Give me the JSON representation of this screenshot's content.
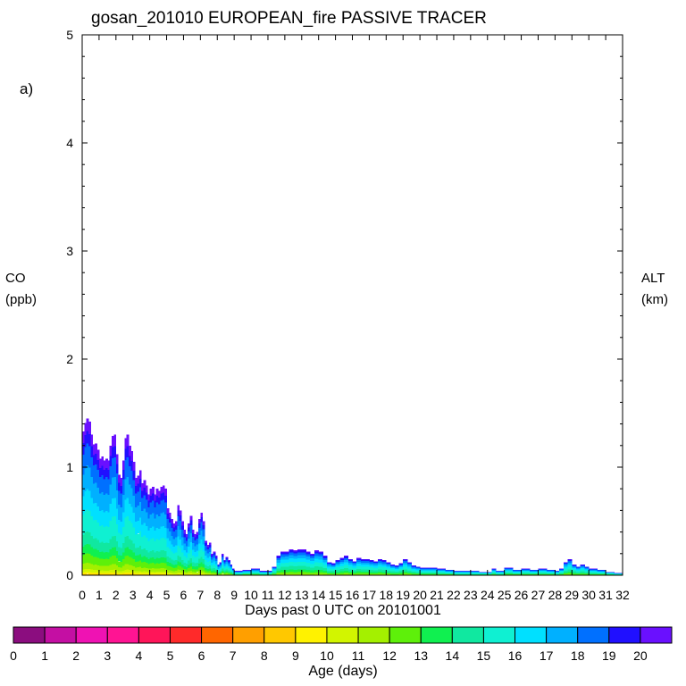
{
  "chart_data": {
    "type": "area",
    "title": "gosan_201010 EUROPEAN_fire PASSIVE TRACER",
    "panel_label": "a)",
    "ylabel": [
      "CO",
      "(ppb)"
    ],
    "ylabel_right": [
      "ALT",
      "(km)"
    ],
    "xlabel": "Days past 0 UTC on 20101001",
    "xlim": [
      0,
      32
    ],
    "ylim": [
      0,
      5
    ],
    "xticks": [
      0,
      1,
      2,
      3,
      4,
      5,
      6,
      7,
      8,
      9,
      10,
      11,
      12,
      13,
      14,
      15,
      16,
      17,
      18,
      19,
      20,
      21,
      22,
      23,
      24,
      25,
      26,
      27,
      28,
      29,
      30,
      31,
      32
    ],
    "yticks": [
      0,
      1,
      2,
      3,
      4,
      5
    ],
    "total_co": {
      "x": [
        0,
        0.125,
        0.25,
        0.375,
        0.5,
        0.625,
        0.75,
        0.875,
        1,
        1.125,
        1.25,
        1.375,
        1.5,
        1.625,
        1.75,
        1.875,
        2,
        2.125,
        2.25,
        2.375,
        2.5,
        2.625,
        2.75,
        2.875,
        3,
        3.125,
        3.25,
        3.375,
        3.5,
        3.625,
        3.75,
        3.875,
        4,
        4.125,
        4.25,
        4.375,
        4.5,
        4.625,
        4.75,
        4.875,
        5,
        5.125,
        5.25,
        5.375,
        5.5,
        5.625,
        5.75,
        5.875,
        6,
        6.125,
        6.25,
        6.375,
        6.5,
        6.625,
        6.75,
        6.875,
        7,
        7.125,
        7.25,
        7.375,
        7.5,
        7.625,
        7.75,
        7.875,
        8,
        8.125,
        8.25,
        8.375,
        8.5,
        8.625,
        8.75,
        8.875,
        9,
        9.5,
        10,
        10.5,
        11,
        11.25,
        11.5,
        11.75,
        12,
        12.25,
        12.5,
        12.75,
        13,
        13.25,
        13.5,
        13.75,
        14,
        14.25,
        14.5,
        14.75,
        15,
        15.25,
        15.5,
        15.75,
        16,
        16.25,
        16.5,
        16.75,
        17,
        17.25,
        17.5,
        17.75,
        18,
        18.25,
        18.5,
        18.75,
        19,
        19.25,
        19.5,
        19.75,
        20,
        20.5,
        21,
        21.5,
        22,
        22.5,
        23,
        23.5,
        24,
        24.25,
        24.5,
        25,
        25.5,
        26,
        26.5,
        27,
        27.5,
        28,
        28.25,
        28.5,
        28.75,
        29,
        29.25,
        29.5,
        29.75,
        30,
        30.5,
        31,
        31.5
      ],
      "values": [
        1.33,
        1.41,
        1.45,
        1.42,
        1.3,
        1.21,
        1.22,
        1.16,
        1.08,
        1.1,
        1.06,
        1.08,
        1.06,
        1.2,
        1.29,
        1.3,
        1.12,
        0.93,
        0.9,
        1.06,
        1.27,
        1.3,
        1.2,
        1.15,
        1.05,
        0.9,
        0.92,
        0.97,
        0.85,
        0.88,
        0.83,
        0.75,
        0.8,
        0.82,
        0.75,
        0.8,
        0.78,
        0.82,
        0.83,
        0.8,
        0.62,
        0.58,
        0.52,
        0.48,
        0.5,
        0.65,
        0.6,
        0.5,
        0.42,
        0.38,
        0.48,
        0.55,
        0.42,
        0.38,
        0.4,
        0.52,
        0.58,
        0.5,
        0.32,
        0.28,
        0.3,
        0.2,
        0.22,
        0.18,
        0.1,
        0.12,
        0.2,
        0.14,
        0.17,
        0.14,
        0.1,
        0.06,
        0.04,
        0.05,
        0.06,
        0.04,
        0.04,
        0.08,
        0.18,
        0.22,
        0.22,
        0.24,
        0.23,
        0.24,
        0.24,
        0.22,
        0.2,
        0.23,
        0.22,
        0.18,
        0.12,
        0.11,
        0.14,
        0.16,
        0.18,
        0.15,
        0.13,
        0.16,
        0.15,
        0.15,
        0.14,
        0.13,
        0.15,
        0.14,
        0.12,
        0.1,
        0.09,
        0.11,
        0.15,
        0.12,
        0.09,
        0.08,
        0.07,
        0.07,
        0.06,
        0.05,
        0.04,
        0.04,
        0.04,
        0.03,
        0.03,
        0.06,
        0.04,
        0.07,
        0.05,
        0.06,
        0.05,
        0.06,
        0.05,
        0.04,
        0.06,
        0.12,
        0.15,
        0.1,
        0.08,
        0.1,
        0.08,
        0.06,
        0.05,
        0.03,
        0.02
      ]
    },
    "series_age_fractions": {
      "bands": [
        20,
        19,
        18,
        17,
        16,
        15,
        14,
        13,
        12,
        11,
        10,
        9,
        8
      ],
      "early_period": [
        0.08,
        0.08,
        0.14,
        0.15,
        0.13,
        0.14,
        0.08,
        0.06,
        0.06,
        0.04,
        0.02,
        0.01,
        0.01
      ],
      "late_period": [
        0.04,
        0.08,
        0.1,
        0.12,
        0.14,
        0.16,
        0.14,
        0.09,
        0.07,
        0.03,
        0.02,
        0.01,
        0.0
      ]
    },
    "colorbar": {
      "label": "Age (days)",
      "ticks": [
        "0",
        "1",
        "2",
        "3",
        "4",
        "5",
        "6",
        "7",
        "8",
        "9",
        "10",
        "11",
        "12",
        "13",
        "14",
        "15",
        "16",
        "17",
        "18",
        "19",
        "20"
      ],
      "colors": [
        "#8b0d7f",
        "#c40fa3",
        "#ef12b3",
        "#ff1493",
        "#ff1559",
        "#ff2a2a",
        "#ff6600",
        "#ff9f00",
        "#ffc800",
        "#fff200",
        "#d2f500",
        "#a4f000",
        "#5ef00a",
        "#10f050",
        "#10e8a0",
        "#0ff0d2",
        "#00e0ff",
        "#00b0ff",
        "#0070ff",
        "#2010ff",
        "#6a10ff"
      ]
    }
  }
}
